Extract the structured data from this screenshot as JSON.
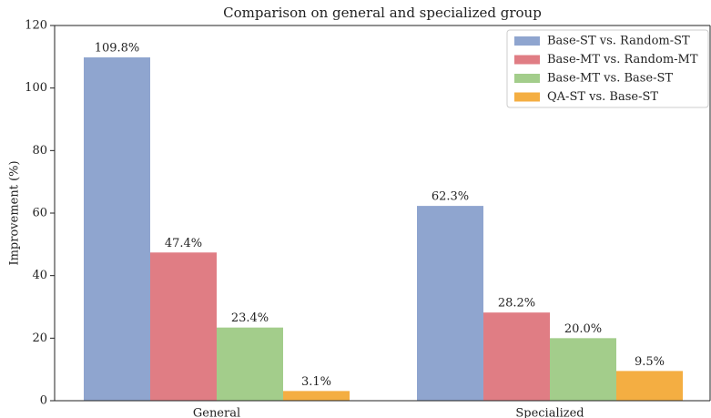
{
  "chart_data": {
    "type": "bar",
    "title": "Comparison on general and specialized group",
    "ylabel": "Improvement (%)",
    "categories": [
      "General",
      "Specialized"
    ],
    "series": [
      {
        "name": "Base-ST vs. Random-ST",
        "color": "#8fa5cf",
        "values": [
          109.8,
          62.3
        ],
        "value_labels": [
          "109.8%",
          "62.3%"
        ]
      },
      {
        "name": "Base-MT vs. Random-MT",
        "color": "#e07d84",
        "values": [
          47.4,
          28.2
        ],
        "value_labels": [
          "47.4%",
          "28.2%"
        ]
      },
      {
        "name": "Base-MT vs. Base-ST",
        "color": "#a3cd8b",
        "values": [
          23.4,
          20.0
        ],
        "value_labels": [
          "23.4%",
          "20.0%"
        ]
      },
      {
        "name": "QA-ST vs. Base-ST",
        "color": "#f4ae42",
        "values": [
          3.1,
          9.5
        ],
        "value_labels": [
          "3.1%",
          "9.5%"
        ]
      }
    ],
    "ylim": [
      0,
      120
    ],
    "yticks": [
      0,
      20,
      40,
      60,
      80,
      100,
      120
    ],
    "grid": false,
    "legend": "upper right"
  }
}
